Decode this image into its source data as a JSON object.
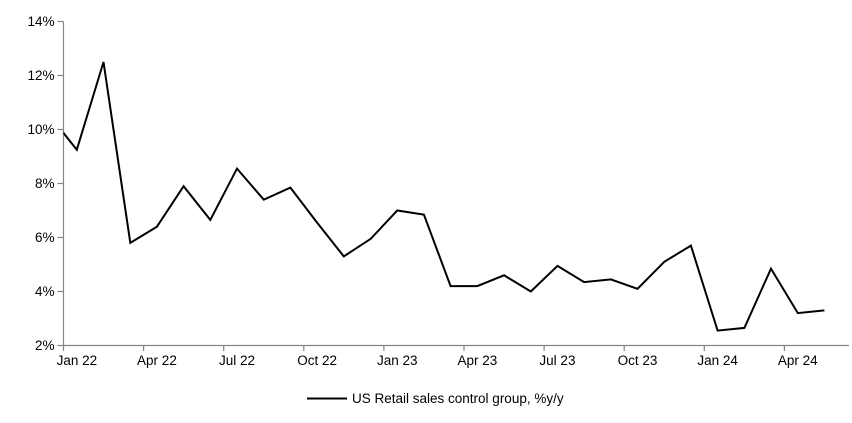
{
  "chart_data": {
    "type": "line",
    "title": "",
    "xlabel": "",
    "ylabel": "",
    "background": "#ffffff",
    "axis_color": "#858585",
    "text_color": "#000000",
    "grid": false,
    "ylim": [
      2,
      14
    ],
    "yticks": [
      {
        "value": 14,
        "label": "14%"
      },
      {
        "value": 12,
        "label": "12%"
      },
      {
        "value": 10,
        "label": "10%"
      },
      {
        "value": 8,
        "label": "8%"
      },
      {
        "value": 6,
        "label": "6%"
      },
      {
        "value": 4,
        "label": "4%"
      },
      {
        "value": 2,
        "label": "2%"
      }
    ],
    "xticks": [
      {
        "label": "Jan 22",
        "index": 1
      },
      {
        "label": "Apr 22",
        "index": 4
      },
      {
        "label": "Jul 22",
        "index": 7
      },
      {
        "label": "Oct 22",
        "index": 10
      },
      {
        "label": "Jan 23",
        "index": 13
      },
      {
        "label": "Apr 23",
        "index": 16
      },
      {
        "label": "Jul 23",
        "index": 19
      },
      {
        "label": "Oct 23",
        "index": 22
      },
      {
        "label": "Jan 24",
        "index": 25
      },
      {
        "label": "Apr 24",
        "index": 28
      }
    ],
    "x": [
      "Dec 21",
      "Jan 22",
      "Feb 22",
      "Mar 22",
      "Apr 22",
      "May 22",
      "Jun 22",
      "Jul 22",
      "Aug 22",
      "Sep 22",
      "Oct 22",
      "Nov 22",
      "Dec 22",
      "Jan 23",
      "Feb 23",
      "Mar 23",
      "Apr 23",
      "May 23",
      "Jun 23",
      "Jul 23",
      "Aug 23",
      "Sep 23",
      "Oct 23",
      "Nov 23",
      "Dec 23",
      "Jan 24",
      "Feb 24",
      "Mar 24",
      "Apr 24",
      "May 24"
    ],
    "series": [
      {
        "name": "US Retail sales control group, %y/y",
        "color": "#000000",
        "values": [
          10.5,
          9.25,
          12.5,
          5.8,
          6.4,
          7.9,
          6.65,
          8.55,
          7.4,
          7.85,
          6.55,
          5.3,
          5.95,
          7.0,
          6.85,
          4.2,
          4.2,
          4.6,
          4.0,
          4.95,
          4.35,
          4.45,
          4.1,
          5.1,
          5.7,
          2.55,
          2.65,
          4.85,
          3.2,
          3.3
        ]
      }
    ],
    "note": "First point (Dec 21) is clipped at the left axis edge in the rendered chart",
    "legend_position": "bottom-center"
  },
  "legend": {
    "label": "US Retail sales control group, %y/y"
  }
}
